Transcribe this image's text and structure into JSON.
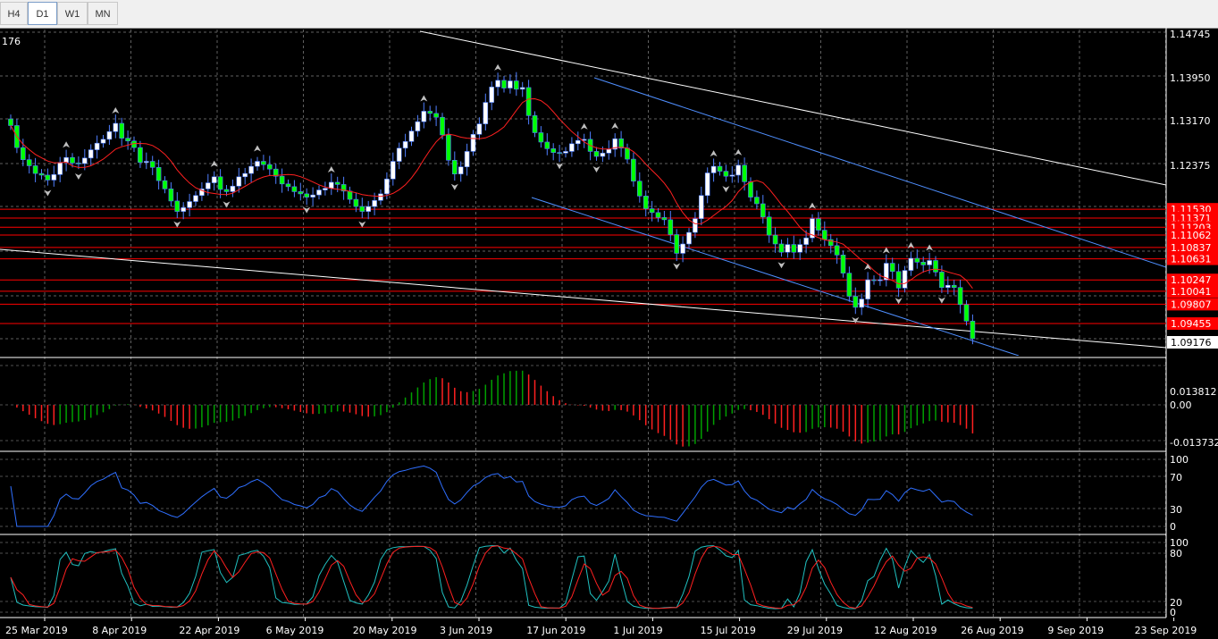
{
  "tabs": [
    {
      "label": "H4",
      "active": false
    },
    {
      "label": "D1",
      "active": true
    },
    {
      "label": "W1",
      "active": false
    },
    {
      "label": "MN",
      "active": false
    }
  ],
  "main_pane": {
    "corner_text": "176",
    "price_ticks": [
      "1.14745",
      "1.13950",
      "1.13170",
      "1.12375"
    ],
    "level_labels": [
      {
        "value": "1.11530",
        "price": 1.1153
      },
      {
        "value": "1.11371",
        "price": 1.11371
      },
      {
        "value": "1.11203",
        "price": 1.11203
      },
      {
        "value": "1.11062",
        "price": 1.11062
      },
      {
        "value": "1.10837",
        "price": 1.10837
      },
      {
        "value": "1.10631",
        "price": 1.10631
      },
      {
        "value": "1.10247",
        "price": 1.10247
      },
      {
        "value": "1.10041",
        "price": 1.10041
      },
      {
        "value": "1.09807",
        "price": 1.09807
      },
      {
        "value": "1.09455",
        "price": 1.09455
      }
    ],
    "current_price": "1.09176"
  },
  "macd_pane": {
    "ticks": [
      "0.013812",
      "0.00",
      "-0.013732"
    ]
  },
  "rsi_pane": {
    "ticks": [
      "100",
      "70",
      "30",
      "0"
    ]
  },
  "stoch_pane": {
    "ticks": [
      "100",
      "80",
      "20",
      "0"
    ]
  },
  "date_labels": [
    "25 Mar 2019",
    "8 Apr 2019",
    "22 Apr 2019",
    "6 May 2019",
    "20 May 2019",
    "3 Jun 2019",
    "17 Jun 2019",
    "1 Jul 2019",
    "15 Jul 2019",
    "29 Jul 2019",
    "12 Aug 2019",
    "26 Aug 2019",
    "9 Sep 2019",
    "23 Sep 2019"
  ],
  "colors": {
    "background": "#000000",
    "bull_candle": "#ffffff",
    "bear_candle": "#00ff00",
    "candle_border": "#4f7fff",
    "moving_average": "#ff2020",
    "channel_line": "#4f8fff",
    "trend_line": "#ffffff",
    "resistance_line": "#ff0000",
    "macd_positive": "#00a000",
    "macd_negative": "#ff2020",
    "rsi_line": "#2f6fff",
    "stoch_main": "#20c0c0",
    "stoch_signal": "#ff2020"
  },
  "chart_data": {
    "type": "candlestick",
    "symbol_period": "D1",
    "x_start": "25 Mar 2019",
    "x_end": "23 Sep 2019",
    "closes": [
      1.1305,
      1.1265,
      1.1243,
      1.1232,
      1.1218,
      1.1215,
      1.1206,
      1.1216,
      1.1238,
      1.1247,
      1.1237,
      1.1236,
      1.1246,
      1.1261,
      1.1273,
      1.128,
      1.1294,
      1.1309,
      1.1282,
      1.1277,
      1.1265,
      1.1238,
      1.124,
      1.1229,
      1.1205,
      1.119,
      1.1168,
      1.1149,
      1.1156,
      1.1167,
      1.1178,
      1.119,
      1.1201,
      1.1212,
      1.1189,
      1.1185,
      1.1195,
      1.1212,
      1.1218,
      1.1231,
      1.124,
      1.1234,
      1.1226,
      1.1213,
      1.1199,
      1.1194,
      1.1185,
      1.1181,
      1.1175,
      1.1179,
      1.1188,
      1.1191,
      1.1202,
      1.1198,
      1.1186,
      1.1171,
      1.1158,
      1.1149,
      1.1158,
      1.1169,
      1.1181,
      1.1208,
      1.124,
      1.1264,
      1.1276,
      1.1295,
      1.1312,
      1.1331,
      1.1327,
      1.132,
      1.1288,
      1.1242,
      1.1217,
      1.123,
      1.1258,
      1.1289,
      1.1308,
      1.1347,
      1.1375,
      1.1387,
      1.1373,
      1.1386,
      1.1371,
      1.1374,
      1.1323,
      1.1292,
      1.1275,
      1.1263,
      1.1256,
      1.1255,
      1.1258,
      1.1272,
      1.1278,
      1.128,
      1.1258,
      1.1249,
      1.1255,
      1.1262,
      1.1281,
      1.1264,
      1.1244,
      1.1204,
      1.1177,
      1.1154,
      1.1147,
      1.1138,
      1.1134,
      1.1107,
      1.1073,
      1.109,
      1.1111,
      1.1136,
      1.1178,
      1.1219,
      1.1231,
      1.1222,
      1.1213,
      1.1215,
      1.1233,
      1.1203,
      1.1175,
      1.1163,
      1.1139,
      1.1106,
      1.109,
      1.1075,
      1.1089,
      1.1075,
      1.1089,
      1.1101,
      1.1136,
      1.1115,
      1.1098,
      1.1087,
      1.107,
      1.1037,
      1.0995,
      1.0975,
      1.099,
      1.1025,
      1.1024,
      1.1025,
      1.1055,
      1.104,
      1.101,
      1.1042,
      1.1064,
      1.1057,
      1.1052,
      1.106,
      1.1039,
      1.1011,
      1.1015,
      1.1011,
      1.098,
      1.095,
      1.0918
    ],
    "annotations": [
      "fractal up/down arrows",
      "descending channel",
      "horizontal resistance levels"
    ],
    "indicators": [
      {
        "name": "MACD histogram",
        "range": [
          -0.013732,
          0.013812
        ]
      },
      {
        "name": "RSI",
        "range": [
          0,
          100
        ],
        "levels": [
          30,
          70
        ]
      },
      {
        "name": "Stochastic",
        "range": [
          0,
          100
        ],
        "levels": [
          20,
          80
        ]
      }
    ]
  }
}
